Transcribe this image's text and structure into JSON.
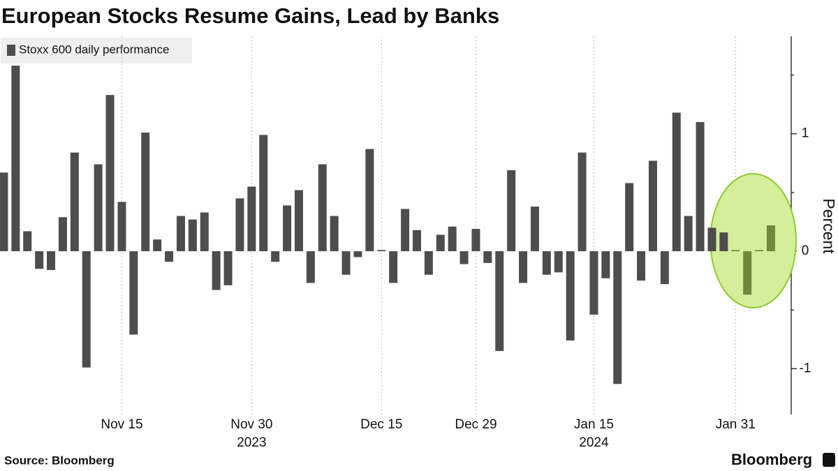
{
  "chart_data": {
    "type": "bar",
    "title": "European Stocks Resume Gains, Lead by Banks",
    "y_label": "Percent",
    "source": "Source: Bloomberg",
    "brand": "Bloomberg",
    "series": [
      {
        "name": "Stoxx 600 daily performance",
        "color": "#4d4d4d",
        "values": [
          0.67,
          1.58,
          0.17,
          -0.15,
          -0.16,
          0.29,
          0.84,
          -0.99,
          0.74,
          1.33,
          0.42,
          -0.71,
          1.01,
          0.1,
          -0.09,
          0.3,
          0.27,
          0.33,
          -0.33,
          -0.29,
          0.45,
          0.55,
          0.99,
          -0.09,
          0.39,
          0.52,
          -0.27,
          0.74,
          0.3,
          -0.2,
          -0.05,
          0.87,
          0.01,
          -0.27,
          0.36,
          0.18,
          -0.2,
          0.14,
          0.21,
          -0.11,
          0.19,
          -0.1,
          -0.85,
          0.69,
          -0.27,
          0.38,
          -0.2,
          -0.18,
          -0.76,
          0.84,
          -0.54,
          -0.23,
          -1.13,
          0.58,
          -0.25,
          0.77,
          -0.28,
          1.18,
          0.3,
          1.1,
          0.2,
          0.16,
          0.01,
          -0.37,
          0.01,
          0.22
        ]
      }
    ],
    "categories": [
      null,
      null,
      null,
      null,
      null,
      null,
      null,
      null,
      null,
      null,
      "Nov 15",
      null,
      null,
      null,
      null,
      null,
      null,
      null,
      null,
      null,
      null,
      "Nov 30",
      null,
      null,
      null,
      null,
      null,
      null,
      null,
      null,
      null,
      null,
      "Dec 15",
      null,
      null,
      null,
      null,
      null,
      null,
      null,
      "Dec 29",
      null,
      null,
      null,
      null,
      null,
      null,
      null,
      null,
      null,
      "Jan 15",
      null,
      null,
      null,
      null,
      null,
      null,
      null,
      null,
      null,
      null,
      null,
      "Jan 31",
      null,
      null,
      null
    ],
    "year_labels": [
      {
        "label": "2023",
        "category": "Nov 30"
      },
      {
        "label": "2024",
        "category": "Jan 15"
      }
    ],
    "ylim": [
      -1.39,
      1.83
    ],
    "yticks": [
      -1,
      0,
      1
    ],
    "yminor": [
      -0.5,
      0.5,
      1.5
    ],
    "highlight": {
      "indices": [
        62,
        63,
        64,
        65
      ],
      "color": "#6b8a3c",
      "fill": "#d4ee9b",
      "stroke": "#8dcb2e"
    }
  }
}
